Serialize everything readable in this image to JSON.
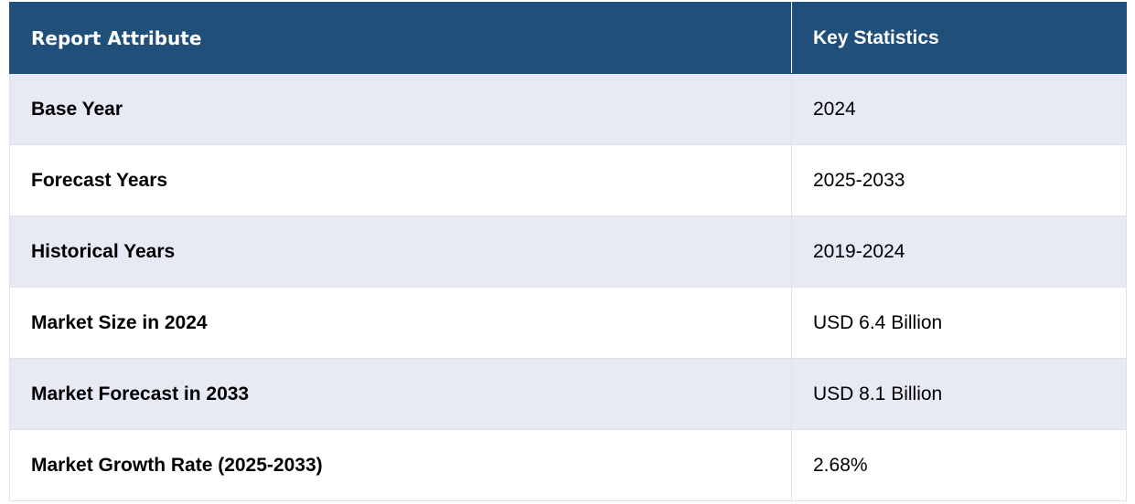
{
  "table": {
    "header": [
      "Report Attribute",
      "Key Statistics"
    ],
    "rows": [
      [
        "Base Year",
        "2024"
      ],
      [
        "Forecast Years",
        "2025-2033"
      ],
      [
        "Historical Years",
        "2019-2024"
      ],
      [
        "Market Size in 2024",
        "USD 6.4 Billion"
      ],
      [
        "Market Forecast in 2033",
        "USD 8.1 Billion"
      ],
      [
        "Market Growth Rate (2025-2033)",
        "2.68%"
      ]
    ]
  }
}
